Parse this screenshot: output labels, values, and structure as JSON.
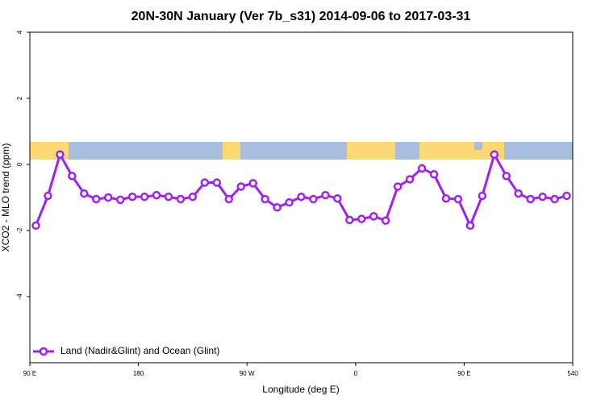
{
  "chart_data": {
    "type": "line",
    "title": "20N-30N January (Ver 7b_s31)   2014-09-06 to 2017-03-31",
    "x_label": "Longitude (deg E)",
    "y_label": "XCO2 - MLO trend (ppm)",
    "x": [
      95,
      105,
      115,
      125,
      135,
      145,
      155,
      165,
      175,
      185,
      195,
      205,
      215,
      225,
      235,
      245,
      255,
      265,
      275,
      285,
      295,
      305,
      315,
      325,
      335,
      345,
      355,
      365,
      375,
      385,
      395,
      405,
      415,
      425,
      435,
      445,
      455,
      465,
      475,
      485,
      495,
      505,
      515,
      525,
      535
    ],
    "series": [
      {
        "name": "Land (Nadir&Glint) and Ocean (Glint)",
        "color": "#a020f0",
        "values": [
          -1.85,
          -0.95,
          0.3,
          -0.35,
          -0.88,
          -1.05,
          -1.0,
          -1.07,
          -0.98,
          -0.98,
          -0.93,
          -0.98,
          -1.05,
          -0.98,
          -0.55,
          -0.55,
          -1.05,
          -0.67,
          -0.57,
          -1.05,
          -1.3,
          -1.15,
          -0.98,
          -1.05,
          -0.93,
          -1.03,
          -1.68,
          -1.65,
          -1.57,
          -1.7,
          -0.67,
          -0.45,
          -0.12,
          -0.3,
          -1.03,
          -1.05,
          -1.85,
          -0.95,
          0.3,
          -0.35,
          -0.88,
          -1.05,
          -0.98,
          -1.05,
          -0.95
        ]
      }
    ],
    "xlim": [
      90,
      540
    ],
    "xticks": [
      {
        "value": 90,
        "label": "90 E"
      },
      180,
      {
        "value": 270,
        "label": "90 W"
      },
      {
        "value": 360,
        "label": "0"
      },
      {
        "value": 450,
        "label": "90 E"
      },
      540
    ],
    "ylim": [
      -6,
      4
    ],
    "yticks": [
      4,
      2,
      0,
      -2,
      -4
    ],
    "legend": "bottom-left"
  }
}
